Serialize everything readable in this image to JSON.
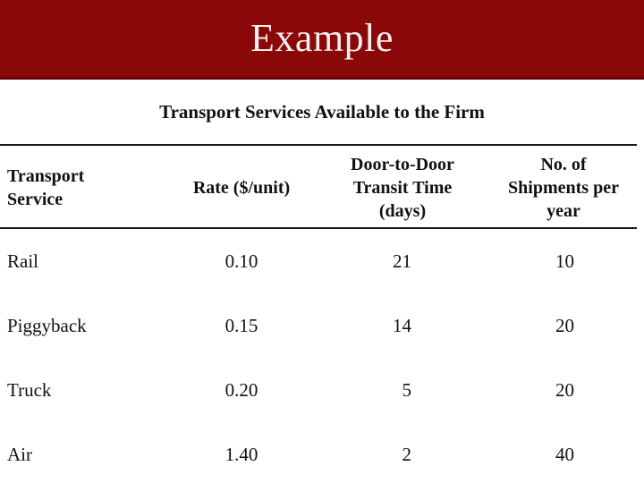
{
  "slide": {
    "title": "Example"
  },
  "table": {
    "title": "Transport Services Available to the Firm",
    "columns": [
      {
        "label": "Transport\nService"
      },
      {
        "label": "Rate ($/unit)"
      },
      {
        "label": "Door-to-Door\nTransit Time\n(days)"
      },
      {
        "label": "No. of\nShipments per\nyear"
      }
    ],
    "rows": [
      {
        "service": "Rail",
        "rate": "0.10",
        "transit_days": "21",
        "shipments_per_year": "10"
      },
      {
        "service": "Piggyback",
        "rate": "0.15",
        "transit_days": "14",
        "shipments_per_year": "20"
      },
      {
        "service": "Truck",
        "rate": "0.20",
        "transit_days": "5",
        "shipments_per_year": "20"
      },
      {
        "service": "Air",
        "rate": "1.40",
        "transit_days": "2",
        "shipments_per_year": "40"
      }
    ]
  },
  "colors": {
    "header_bar": "#8A0808",
    "header_bar_edge": "#640404",
    "title_text": "#F4EEEE",
    "body_text": "#111111",
    "rule": "#1A1A1A"
  }
}
